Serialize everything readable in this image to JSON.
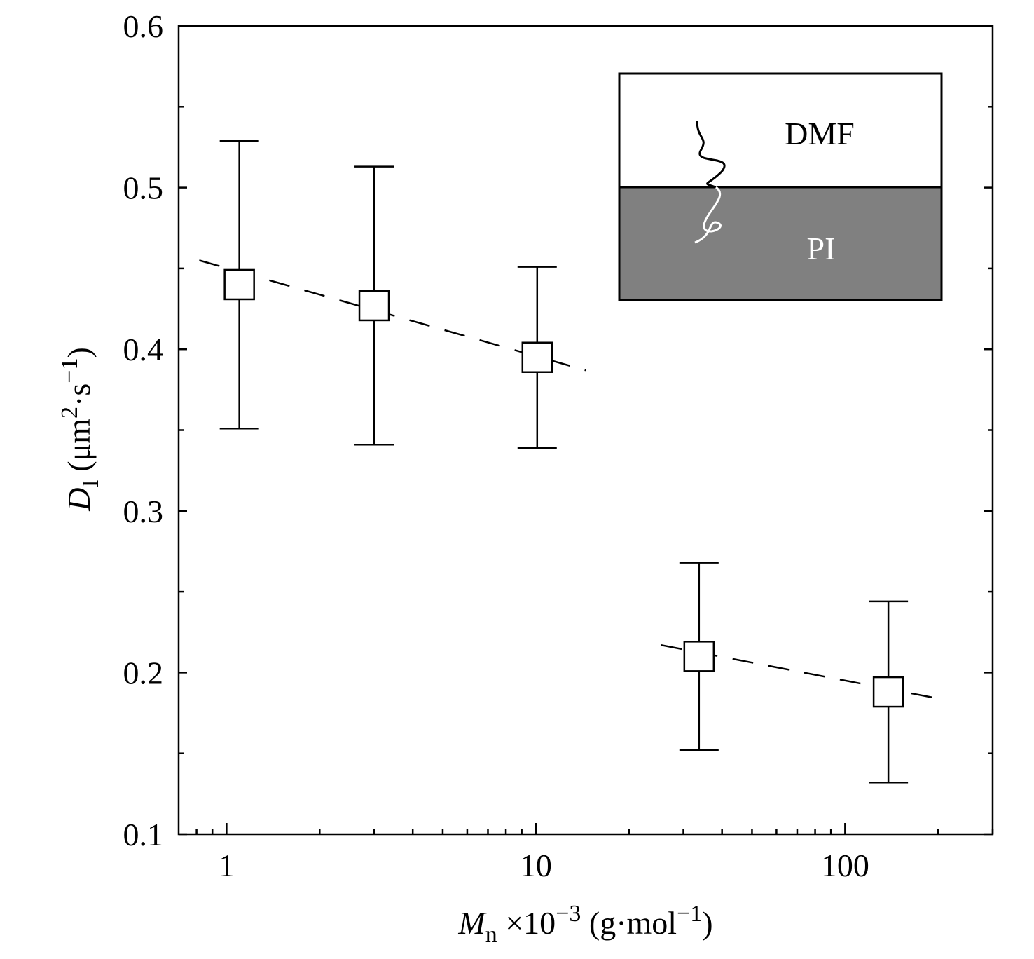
{
  "chart_data": {
    "type": "scatter",
    "xlabel": [
      "M",
      "n",
      " ×10",
      "−3",
      " (g·mol",
      "−1",
      ")"
    ],
    "ylabel": [
      "D",
      "I",
      " (μm",
      "2",
      "·s",
      "−1",
      ")"
    ],
    "xscale": "log",
    "xlim": [
      0.7,
      300
    ],
    "xticks": [
      1,
      10,
      100
    ],
    "xminorticks": [
      0.8,
      0.9,
      2,
      3,
      4,
      5,
      6,
      7,
      8,
      9,
      20,
      30,
      40,
      50,
      60,
      70,
      80,
      90,
      200,
      300
    ],
    "ylim": [
      0.1,
      0.6
    ],
    "yticks": [
      0.1,
      0.2,
      0.3,
      0.4,
      0.5,
      0.6
    ],
    "yminorticks": [
      0.15,
      0.25,
      0.35,
      0.45,
      0.55
    ],
    "color": "#000000",
    "x": [
      1.1,
      3.0,
      10.1,
      33.7,
      138
    ],
    "values": [
      0.44,
      0.427,
      0.395,
      0.21,
      0.188
    ],
    "errors": [
      0.089,
      0.086,
      0.056,
      0.058,
      0.056
    ],
    "fits": [
      {
        "x": [
          0.816,
          14.5
        ],
        "values": [
          0.455,
          0.387
        ]
      },
      {
        "x": [
          25.4,
          212
        ],
        "values": [
          0.217,
          0.183
        ]
      }
    ],
    "inset": {
      "top": "DMF",
      "bottom": "PI"
    }
  }
}
